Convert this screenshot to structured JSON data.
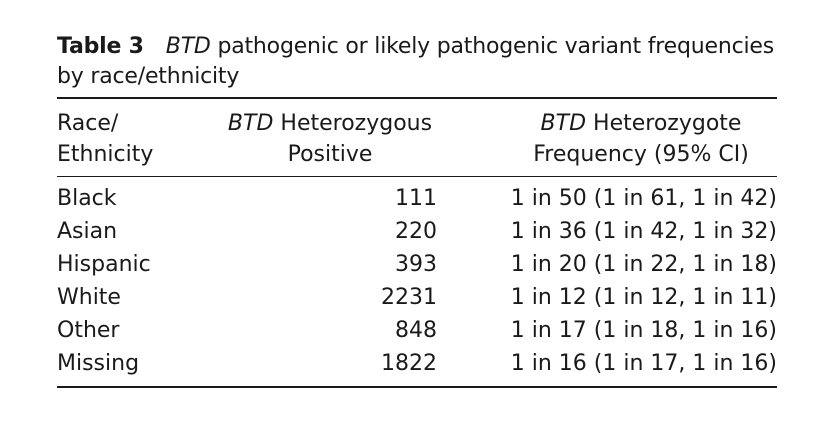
{
  "caption": {
    "label": "Table 3",
    "gene": "BTD",
    "text_rest": " pathogenic or likely pathogenic variant frequencies",
    "text_line2": "by race/ethnicity"
  },
  "columns": {
    "race_line1": "Race/",
    "race_line2": "Ethnicity",
    "het_gene": "BTD",
    "het_line1_rest": " Heterozygous",
    "het_line2": "Positive",
    "freq_gene": "BTD",
    "freq_line1_rest": " Heterozygote",
    "freq_line2": "Frequency (95% CI)"
  },
  "rows": [
    {
      "race": "Black",
      "positive": "111",
      "frequency": "1 in 50 (1 in 61, 1 in 42)"
    },
    {
      "race": "Asian",
      "positive": "220",
      "frequency": "1 in 36 (1 in 42, 1 in 32)"
    },
    {
      "race": "Hispanic",
      "positive": "393",
      "frequency": "1 in 20 (1 in 22, 1 in 18)"
    },
    {
      "race": "White",
      "positive": "2231",
      "frequency": "1 in 12 (1 in 12, 1 in 11)"
    },
    {
      "race": "Other",
      "positive": "848",
      "frequency": "1 in 17 (1 in 18, 1 in 16)"
    },
    {
      "race": "Missing",
      "positive": "1822",
      "frequency": "1 in 16 (1 in 17, 1 in 16)"
    }
  ]
}
